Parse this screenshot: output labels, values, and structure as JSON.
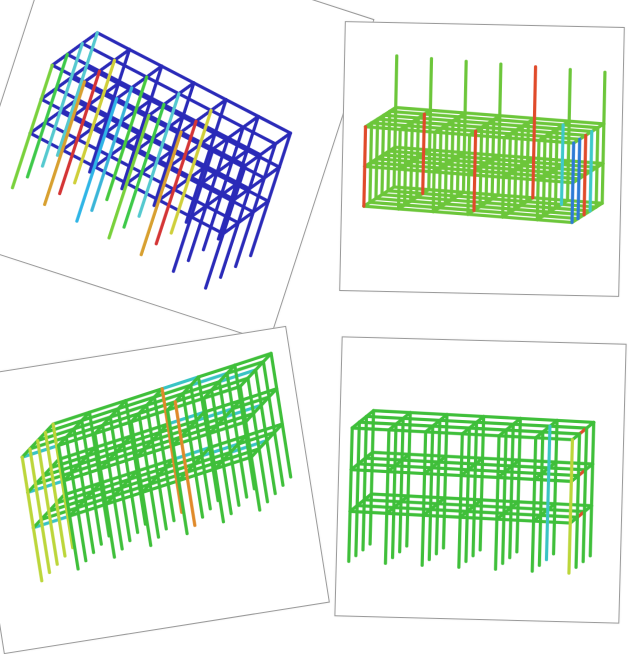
{
  "panels": [
    {
      "id": "view-top-left",
      "palette": {
        "main": "#2a2ab8",
        "post_colors": [
          "#2fb5e6",
          "#55c9cf",
          "#3ec94a",
          "#79d13c",
          "#cfcf3a",
          "#d43535",
          "#d8a030",
          "#45c93e",
          "#3ab5d8",
          "#2a2ab8"
        ]
      }
    },
    {
      "id": "view-top-right",
      "palette": {
        "main": "#6cc63a",
        "accent": [
          "#e04a2a",
          "#2d7ad6",
          "#3ec9c9"
        ]
      }
    },
    {
      "id": "view-bottom-left",
      "palette": {
        "main": "#3fbf3a",
        "accent": [
          "#bcd63a",
          "#39c4c4",
          "#e08a2a"
        ]
      }
    },
    {
      "id": "view-bottom-right",
      "palette": {
        "main": "#3fbf3a",
        "accent": [
          "#39c4c4",
          "#e04a2a",
          "#bcd63a"
        ]
      }
    }
  ]
}
